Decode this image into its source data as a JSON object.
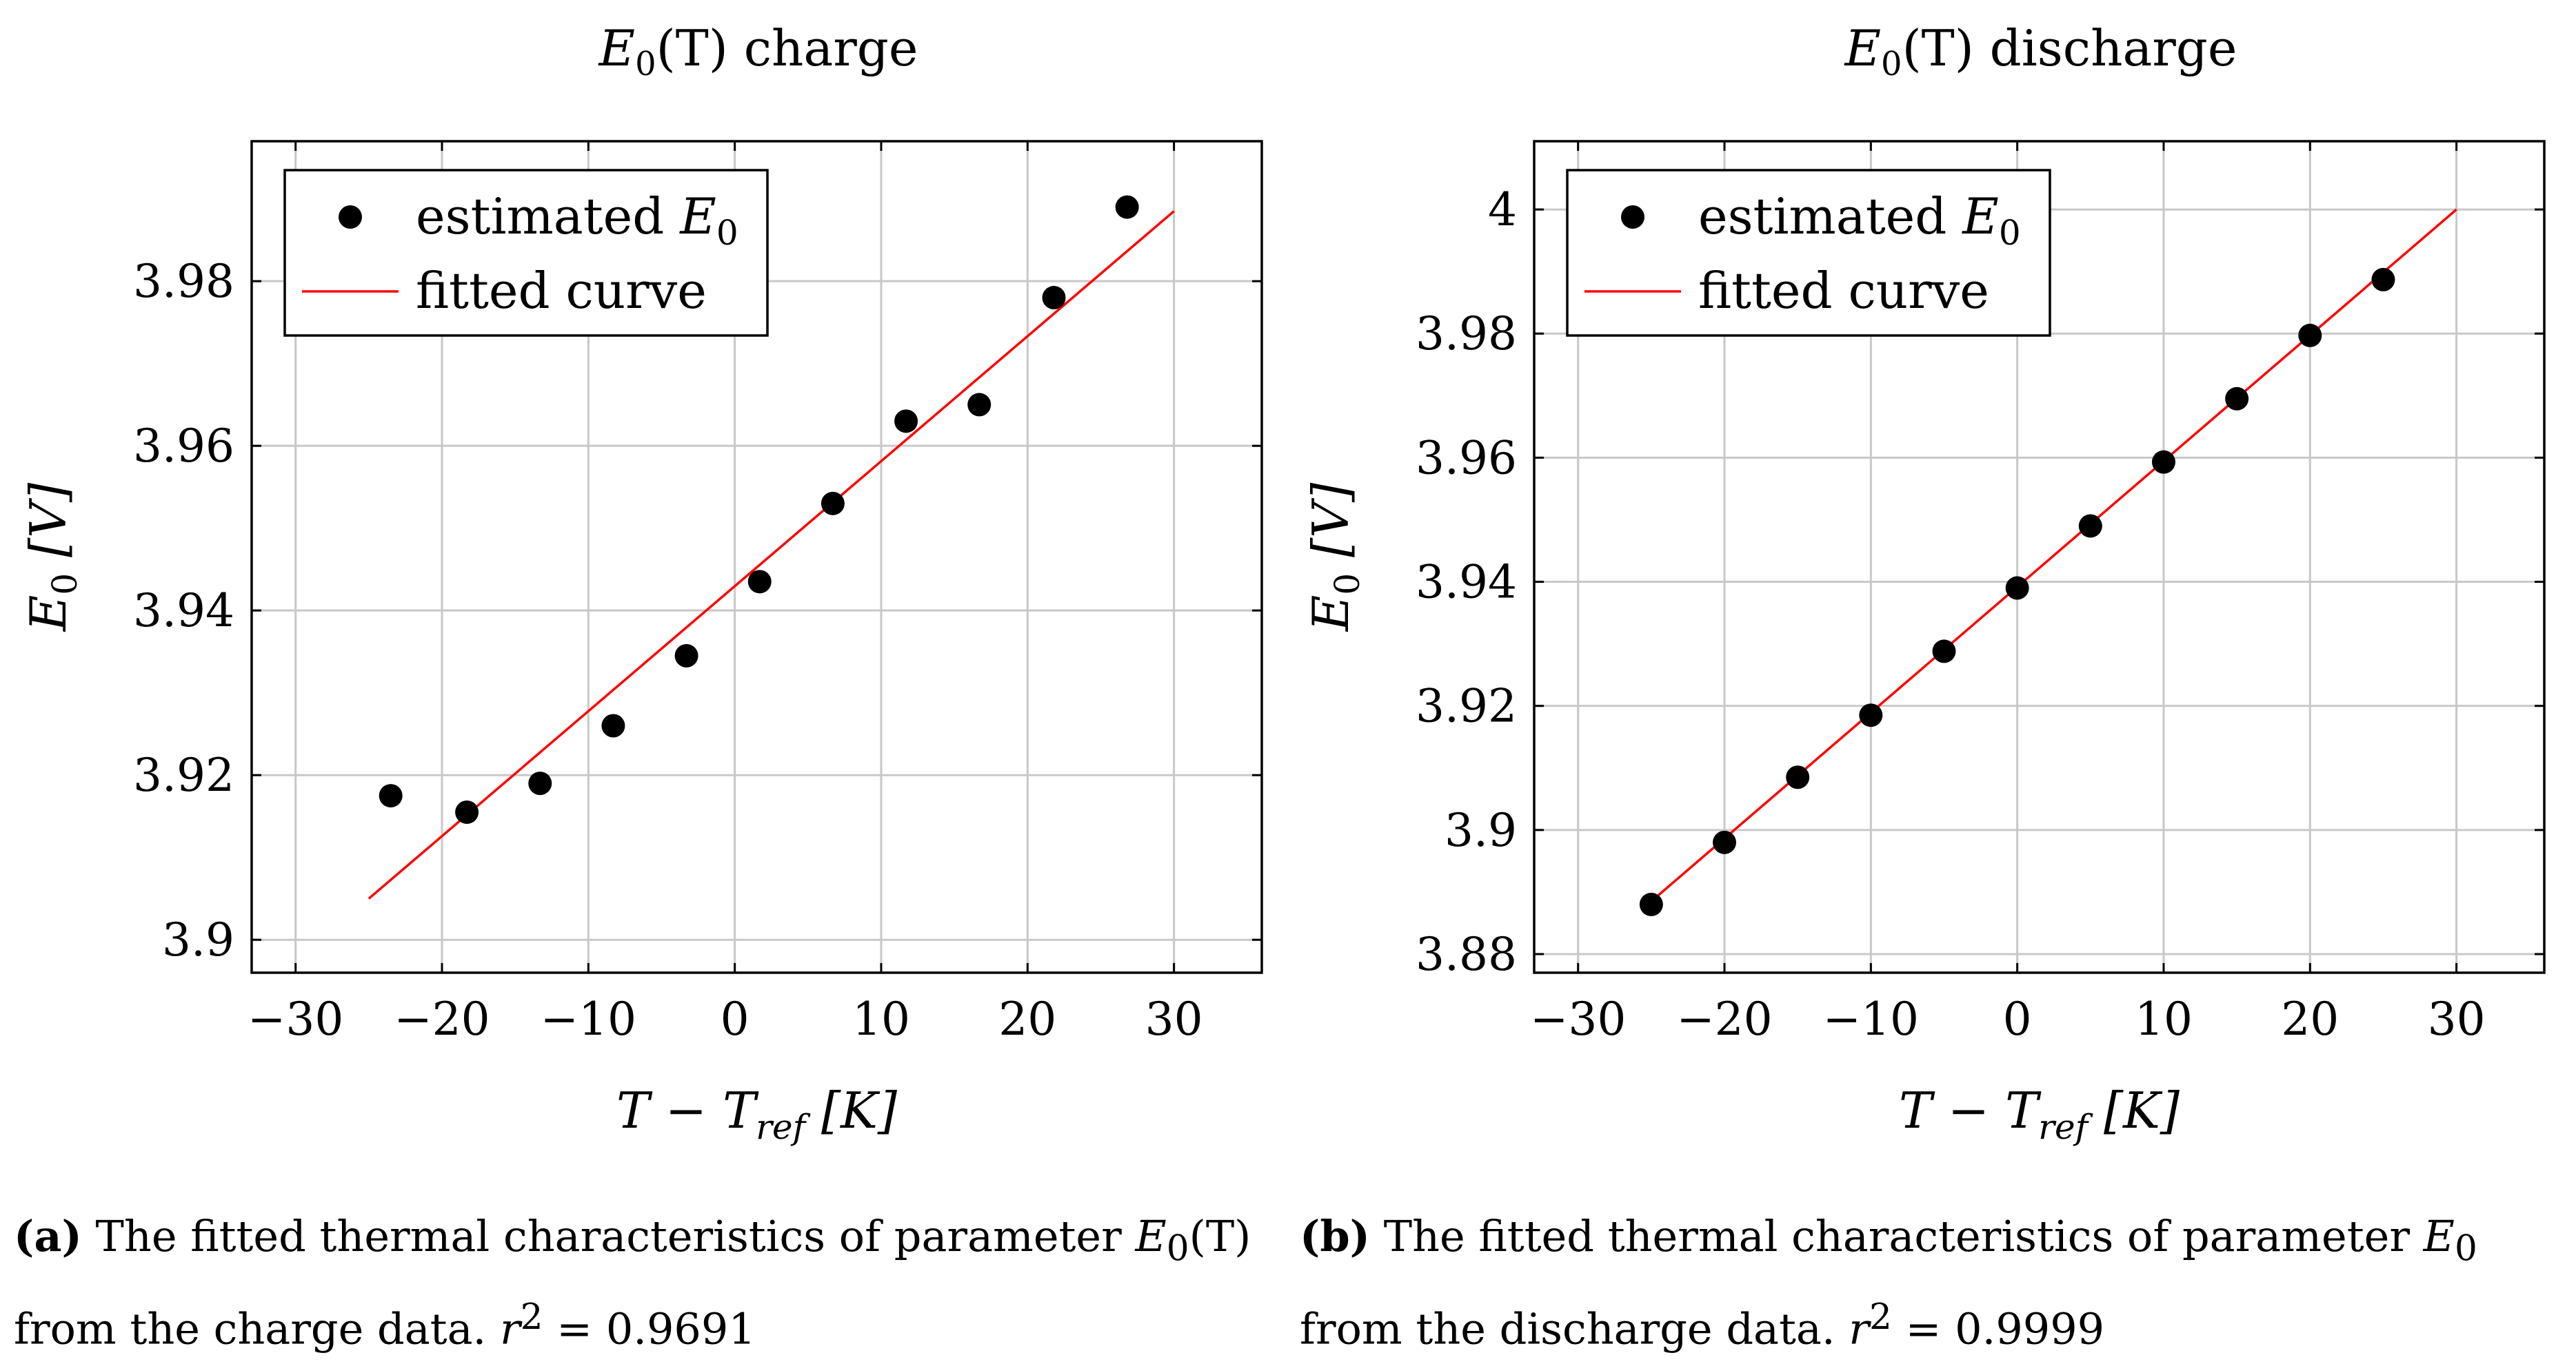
{
  "chart_data": [
    {
      "type": "scatter",
      "title_main": "E",
      "title_sub": "0",
      "title_rest": "(T) charge",
      "xlabel": "T − T",
      "xlabel_sub": "ref",
      "xlabel_rest": " [K]",
      "ylabel_main": "E",
      "ylabel_sub": "0",
      "ylabel_rest": " [V]",
      "xlim": [
        -33,
        36
      ],
      "ylim": [
        3.896,
        3.997
      ],
      "xticks": [
        -30,
        -20,
        -10,
        0,
        10,
        20,
        30
      ],
      "xtick_labels": [
        "−30",
        "−20",
        "−10",
        "0",
        "10",
        "20",
        "30"
      ],
      "yticks": [
        3.9,
        3.92,
        3.94,
        3.96,
        3.98
      ],
      "ytick_labels": [
        "3.9",
        "3.92",
        "3.94",
        "3.96",
        "3.98"
      ],
      "grid": true,
      "legend_position": "top-left",
      "series": [
        {
          "name": "estimated E0",
          "legend_main": "estimated E",
          "legend_sub": "0",
          "kind": "points",
          "color": "#000000",
          "x": [
            -23.5,
            -18.3,
            -13.3,
            -8.3,
            -3.3,
            1.7,
            6.7,
            11.7,
            16.7,
            21.8,
            26.8
          ],
          "y": [
            3.9175,
            3.9155,
            3.919,
            3.926,
            3.9345,
            3.9435,
            3.953,
            3.963,
            3.965,
            3.978,
            3.989
          ]
        },
        {
          "name": "fitted curve",
          "legend_main": "fitted curve",
          "legend_sub": "",
          "kind": "line",
          "color": "#ff0000",
          "x": [
            -25,
            30
          ],
          "y": [
            3.905,
            3.9885
          ]
        }
      ]
    },
    {
      "type": "scatter",
      "title_main": "E",
      "title_sub": "0",
      "title_rest": "(T) discharge",
      "xlabel": "T − T",
      "xlabel_sub": "ref",
      "xlabel_rest": " [K]",
      "ylabel_main": "E",
      "ylabel_sub": "0",
      "ylabel_rest": " [V]",
      "xlim": [
        -33,
        36
      ],
      "ylim": [
        3.877,
        4.011
      ],
      "xticks": [
        -30,
        -20,
        -10,
        0,
        10,
        20,
        30
      ],
      "xtick_labels": [
        "−30",
        "−20",
        "−10",
        "0",
        "10",
        "20",
        "30"
      ],
      "yticks": [
        3.88,
        3.9,
        3.92,
        3.94,
        3.96,
        3.98,
        4.0
      ],
      "ytick_labels": [
        "3.88",
        "3.9",
        "3.92",
        "3.94",
        "3.96",
        "3.98",
        "4"
      ],
      "grid": true,
      "legend_position": "top-left",
      "series": [
        {
          "name": "estimated E0",
          "legend_main": "estimated E",
          "legend_sub": "0",
          "kind": "points",
          "color": "#000000",
          "x": [
            -25,
            -20,
            -15,
            -10,
            -5,
            0,
            5,
            10,
            15,
            20,
            25
          ],
          "y": [
            3.888,
            3.898,
            3.9085,
            3.9185,
            3.9288,
            3.939,
            3.949,
            3.9593,
            3.9695,
            3.9797,
            3.9887
          ]
        },
        {
          "name": "fitted curve",
          "legend_main": "fitted curve",
          "legend_sub": "",
          "kind": "line",
          "color": "#ff0000",
          "x": [
            -25,
            30
          ],
          "y": [
            3.8885,
            4.0
          ]
        }
      ]
    }
  ],
  "captions": {
    "a": {
      "label": "(a)",
      "text1": " The fitted thermal characteristics of parameter ",
      "param_main": "E",
      "param_sub": "0",
      "param_rest": "(T)",
      "text2": "from the charge data. ",
      "r_main": "r",
      "r_sup": "2",
      "r_value": " = 0.9691"
    },
    "b": {
      "label": "(b)",
      "text1": " The fitted thermal characteristics of parameter ",
      "param_main": "E",
      "param_sub": "0",
      "param_rest": "",
      "text2": "from the discharge data. ",
      "r_main": "r",
      "r_sup": "2",
      "r_value": " = 0.9999"
    }
  }
}
